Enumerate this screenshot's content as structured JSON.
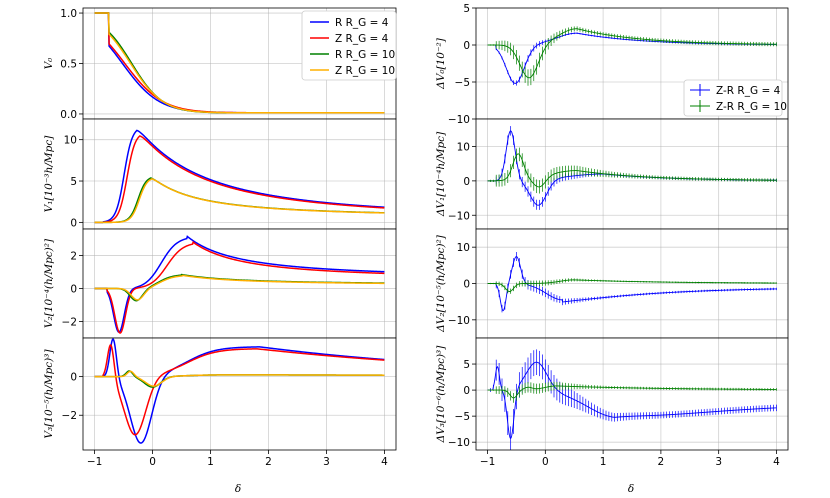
{
  "figure": {
    "xlabel": "δ",
    "xticks": [
      -1,
      0,
      1,
      2,
      3,
      4
    ],
    "xlim": [
      -1.2,
      4.2
    ]
  },
  "chart_data": [
    {
      "id": "left-v0",
      "type": "line",
      "ylabel": "V₀",
      "ylim": [
        -0.05,
        1.05
      ],
      "yticks": [
        0.0,
        0.5,
        1.0
      ],
      "ytick_labels": [
        "0.0",
        "0.5",
        "1.0"
      ],
      "legend": {
        "position": "top-right",
        "entries": [
          "R R_G = 4",
          "Z R_G = 4",
          "R R_G = 10",
          "Z R_G = 10"
        ]
      },
      "series": [
        {
          "name": "R R_G = 4",
          "color": "#0000ff",
          "model": "v0",
          "params": {
            "s": -0.52,
            "w": 0.32
          }
        },
        {
          "name": "Z R_G = 4",
          "color": "#ff0000",
          "model": "v0",
          "params": {
            "s": -0.48,
            "w": 0.33
          }
        },
        {
          "name": "R R_G = 10",
          "color": "#008000",
          "model": "v0",
          "params": {
            "s": -0.36,
            "w": 0.27
          }
        },
        {
          "name": "Z R_G = 10",
          "color": "#ffb000",
          "model": "v0",
          "params": {
            "s": -0.38,
            "w": 0.28
          }
        }
      ]
    },
    {
      "id": "left-v1",
      "type": "line",
      "ylabel": "V₁[10⁻³h/Mpc]",
      "ylim": [
        -0.8,
        12.5
      ],
      "yticks": [
        0,
        5,
        10
      ],
      "ytick_labels": [
        "0",
        "5",
        "10"
      ],
      "series": [
        {
          "name": "R R_G = 4",
          "color": "#0000ff",
          "model": "v1",
          "params": {
            "A": 11.6,
            "p": 0.8,
            "q": 0.2,
            "pk": -0.27
          }
        },
        {
          "name": "Z R_G = 4",
          "color": "#ff0000",
          "model": "v1",
          "params": {
            "A": 10.9,
            "p": 0.8,
            "q": 0.2,
            "pk": -0.22
          }
        },
        {
          "name": "R R_G = 10",
          "color": "#008000",
          "model": "v1",
          "params": {
            "A": 5.6,
            "p": 1.1,
            "q": 0.45,
            "pk": -0.03
          }
        },
        {
          "name": "Z R_G = 10",
          "color": "#ffb000",
          "model": "v1",
          "params": {
            "A": 5.5,
            "p": 1.1,
            "q": 0.45,
            "pk": -0.01
          }
        }
      ]
    },
    {
      "id": "left-v2",
      "type": "line",
      "ylabel": "V₂[10⁻⁴(h/Mpc)²]",
      "ylim": [
        -3.0,
        3.6
      ],
      "yticks": [
        -2,
        0,
        2
      ],
      "ytick_labels": [
        "−2",
        "0",
        "2"
      ],
      "series": [
        {
          "name": "R R_G = 4",
          "color": "#0000ff",
          "model": "v2",
          "params": {
            "A1": 2.65,
            "c1": -0.58,
            "w1": 0.13,
            "A2": 3.15,
            "c2": 0.6,
            "p": 0.9,
            "q": 0.22
          }
        },
        {
          "name": "Z R_G = 4",
          "color": "#ff0000",
          "model": "v2",
          "params": {
            "A1": 2.7,
            "c1": -0.56,
            "w1": 0.13,
            "A2": 2.8,
            "c2": 0.7,
            "p": 0.9,
            "q": 0.2
          }
        },
        {
          "name": "R R_G = 10",
          "color": "#008000",
          "model": "v2",
          "params": {
            "A1": 0.75,
            "c1": -0.28,
            "w1": 0.15,
            "A2": 0.85,
            "c2": 0.5,
            "p": 0.75,
            "q": 0.05
          }
        },
        {
          "name": "Z R_G = 10",
          "color": "#ffb000",
          "model": "v2",
          "params": {
            "A1": 0.7,
            "c1": -0.26,
            "w1": 0.15,
            "A2": 0.8,
            "c2": 0.52,
            "p": 0.75,
            "q": 0.05
          }
        }
      ]
    },
    {
      "id": "left-v3",
      "type": "line",
      "ylabel": "V₃[10⁻⁵(h/Mpc)³]",
      "ylim": [
        -3.8,
        2.0
      ],
      "yticks": [
        -2,
        0
      ],
      "ytick_labels": [
        "−2",
        "0"
      ],
      "series": [
        {
          "name": "R R_G = 4",
          "color": "#0000ff",
          "model": "v3",
          "params": {
            "Ap": 2.05,
            "cp": -0.68,
            "wp": 0.08,
            "Am": 3.5,
            "cm": -0.2,
            "wm": 0.26,
            "Ab": 1.55,
            "cb": 1.85,
            "p": 0.7,
            "q": 0.26,
            "kl": -0.05
          }
        },
        {
          "name": "Z R_G = 4",
          "color": "#ff0000",
          "model": "v3",
          "params": {
            "Ap": 1.85,
            "cp": -0.72,
            "wp": 0.08,
            "Am": 3.05,
            "cm": -0.3,
            "wm": 0.26,
            "Ab": 1.45,
            "cb": 1.8,
            "p": 0.7,
            "q": 0.24,
            "kl": -0.05
          }
        },
        {
          "name": "R R_G = 10",
          "color": "#008000",
          "model": "v3",
          "params": {
            "Ap": 0.3,
            "cp": -0.4,
            "wp": 0.08,
            "Am": 0.55,
            "cm": 0.0,
            "wm": 0.2,
            "Ab": 0.1,
            "cb": 1.0,
            "p": 0.6,
            "q": 0.1,
            "kl": 0.0
          }
        },
        {
          "name": "Z R_G = 10",
          "color": "#ffb000",
          "model": "v3",
          "params": {
            "Ap": 0.28,
            "cp": -0.38,
            "wp": 0.08,
            "Am": 0.5,
            "cm": 0.02,
            "wm": 0.2,
            "Ab": 0.1,
            "cb": 1.0,
            "p": 0.6,
            "q": 0.1,
            "kl": 0.0
          }
        }
      ]
    },
    {
      "id": "right-dv0",
      "type": "line",
      "ylabel": "ΔV₀[10⁻²]",
      "ylim": [
        -10,
        5
      ],
      "yticks": [
        -10,
        -5,
        0,
        5
      ],
      "ytick_labels": [
        "−10",
        "−5",
        "0",
        "5"
      ],
      "legend": {
        "position": "center-right",
        "entries": [
          "Z-R R_G = 4",
          "Z-R R_G = 10"
        ]
      },
      "series": [
        {
          "name": "Z-R R_G = 4",
          "color": "#0000ff",
          "model": "dv0",
          "params": {
            "Am": 5.2,
            "cm": -0.52,
            "wm": 0.22,
            "Ap": 1.6,
            "cp": 0.55,
            "wp": 0.5,
            "err": 0.45,
            "es": 0.35
          }
        },
        {
          "name": "Z-R R_G = 10",
          "color": "#008000",
          "model": "dv0",
          "params": {
            "Am": 4.5,
            "cm": -0.28,
            "wm": 0.22,
            "Ap": 2.2,
            "cp": 0.55,
            "wp": 0.45,
            "err": 1.1,
            "es": 0.5
          }
        }
      ]
    },
    {
      "id": "right-dv1",
      "type": "line",
      "ylabel": "ΔV₁[10⁻⁴h/Mpc]",
      "ylim": [
        -14,
        18
      ],
      "yticks": [
        -10,
        0,
        10
      ],
      "ytick_labels": [
        "−10",
        "0",
        "10"
      ],
      "series": [
        {
          "name": "Z-R R_G = 4",
          "color": "#0000ff",
          "model": "dv1",
          "params": {
            "Ap": 14.5,
            "cp": -0.6,
            "wp": 0.11,
            "Am": 7.5,
            "cm": -0.12,
            "wm": 0.2,
            "Ab": 2.0,
            "cb": 1.0,
            "wb": 0.9,
            "err": 1.5,
            "es": 0.9
          }
        },
        {
          "name": "Z-R R_G = 10",
          "color": "#008000",
          "model": "dv1",
          "params": {
            "Ap": 7.5,
            "cp": -0.47,
            "wp": 0.13,
            "Am": 3.0,
            "cm": -0.1,
            "wm": 0.15,
            "Ab": 3.0,
            "cb": 0.55,
            "wb": 0.7,
            "err": 2.0,
            "es": 1.2
          }
        }
      ]
    },
    {
      "id": "right-dv2",
      "type": "line",
      "ylabel": "ΔV₂[10⁻⁵(h/Mpc)²]",
      "ylim": [
        -15,
        15
      ],
      "yticks": [
        -10,
        0,
        10
      ],
      "ytick_labels": [
        "−10",
        "0",
        "10"
      ],
      "series": [
        {
          "name": "Z-R R_G = 4",
          "color": "#0000ff",
          "model": "dv2",
          "params": {
            "An": 7.5,
            "cn": -0.73,
            "wn": 0.07,
            "Ap": 7.5,
            "cp": -0.5,
            "wp": 0.1,
            "Am": 4.5,
            "cm": 0.3,
            "wm": 0.4,
            "tail": -1.0,
            "err": 1.3,
            "es": 0.8
          }
        },
        {
          "name": "Z-R R_G = 10",
          "color": "#008000",
          "model": "dv2",
          "params": {
            "An": 2.2,
            "cn": -0.62,
            "wn": 0.1,
            "Ap": 0.0,
            "cp": 0.0,
            "wp": 0.1,
            "Am": -1.0,
            "cm": 0.5,
            "wm": 0.35,
            "tail": 0.0,
            "err": 0.8,
            "es": 0.8
          }
        }
      ]
    },
    {
      "id": "right-dv3",
      "type": "line",
      "ylabel": "ΔV₃[10⁻⁶(h/Mpc)³]",
      "ylim": [
        -11.5,
        10
      ],
      "yticks": [
        -10,
        -5,
        0,
        5
      ],
      "ytick_labels": [
        "−10",
        "−5",
        "0",
        "5"
      ],
      "series": [
        {
          "name": "Z-R R_G = 4",
          "color": "#0000ff",
          "model": "dv3",
          "params": {
            "A1": 4.5,
            "c1": -0.83,
            "w1": 0.05,
            "A2": 9.5,
            "c2": -0.6,
            "w2": 0.08,
            "A3": 5.5,
            "c3": -0.15,
            "w3": 0.25,
            "A4": 4.5,
            "c4": 1.2,
            "w4": 0.7,
            "tail": -2.3,
            "err": 2.5,
            "es": 1.0
          }
        },
        {
          "name": "Z-R R_G = 10",
          "color": "#008000",
          "model": "dv3",
          "params": {
            "A1": 0.0,
            "c1": -0.8,
            "w1": 0.05,
            "A2": 1.5,
            "c2": -0.55,
            "w2": 0.09,
            "A3": 0.5,
            "c3": -0.3,
            "w3": 0.1,
            "A4": -0.8,
            "c4": 0.2,
            "w4": 0.3,
            "tail": 0.0,
            "err": 1.0,
            "es": 0.8
          }
        }
      ]
    }
  ]
}
